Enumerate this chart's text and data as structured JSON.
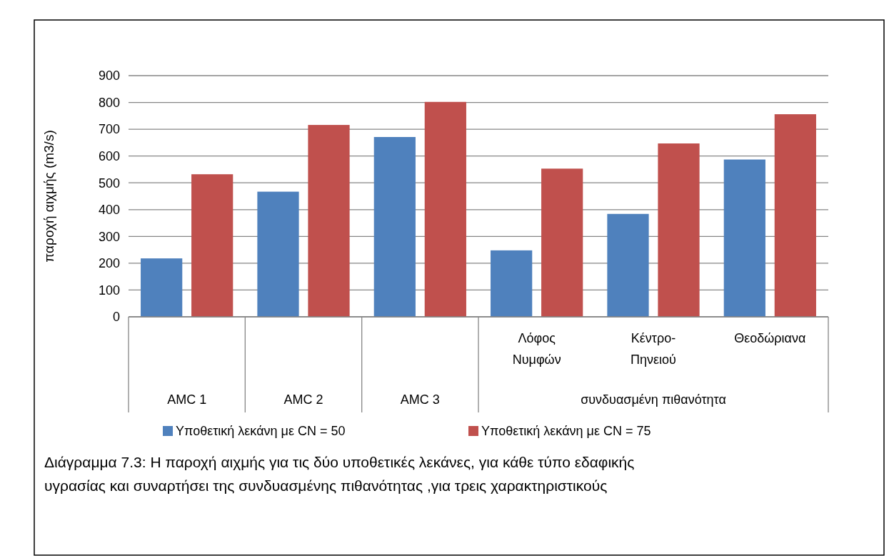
{
  "chart_data": {
    "type": "bar",
    "ylabel": "παροχή αιχμής (m3/s)",
    "categories": [
      "AMC 1",
      "AMC 2",
      "AMC 3",
      "Λόφος Νυμφών",
      "Κέντρο-Πηνειού",
      "Θεοδώριανα"
    ],
    "series": [
      {
        "name": "Υποθετική λεκάνη με CN = 50",
        "color": "#4f81bd",
        "values": [
          218,
          467,
          671,
          248,
          384,
          587
        ]
      },
      {
        "name": "Υποθετική λεκάνη με CN = 75",
        "color": "#c0504d",
        "values": [
          532,
          716,
          802,
          553,
          647,
          756
        ]
      }
    ],
    "ylim": [
      0,
      900
    ],
    "yticks": [
      0,
      100,
      200,
      300,
      400,
      500,
      600,
      700,
      800,
      900
    ],
    "grid": "y",
    "legend": "bottom",
    "annotations": [
      "συνδυασμένη πιθανότητα",
      "Διάγραμμα 7.3: Η παροχή αιχμής για τις δύο υποθετικές λεκάνες, για κάθε τύπο εδαφικής υγρασίας και συναρτήσει της συνδυασμένης πιθανότητας ,για τρεις  χαρακτηριστικούς"
    ]
  }
}
